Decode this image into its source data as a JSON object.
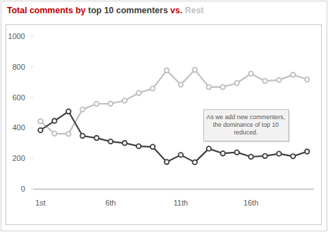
{
  "chart_data": {
    "type": "line",
    "title": "Total comments by top 10 commenters vs. Rest",
    "categories": [
      "1st",
      null,
      null,
      null,
      null,
      "6th",
      null,
      null,
      null,
      null,
      "11th",
      null,
      null,
      null,
      null,
      "16th",
      null,
      null,
      null,
      null
    ],
    "series": [
      {
        "name": "top 10 commenters",
        "color": "#404040",
        "marker": "circle",
        "values": [
          384,
          445,
          507,
          347,
          333,
          310,
          300,
          279,
          275,
          176,
          222,
          174,
          263,
          232,
          239,
          210,
          215,
          230,
          213,
          244
        ]
      },
      {
        "name": "Rest",
        "color": "#bfbfbf",
        "marker": "circle",
        "values": [
          443,
          362,
          360,
          520,
          557,
          558,
          578,
          628,
          657,
          776,
          683,
          780,
          667,
          667,
          693,
          755,
          707,
          713,
          748,
          717
        ]
      }
    ],
    "ylim": [
      0,
      1000
    ],
    "yticks": [
      0,
      200,
      400,
      600,
      800,
      1000
    ],
    "grid": false,
    "annotation": [
      "As we add new commenters,",
      "the dominance of top 10",
      "reduced."
    ]
  }
}
